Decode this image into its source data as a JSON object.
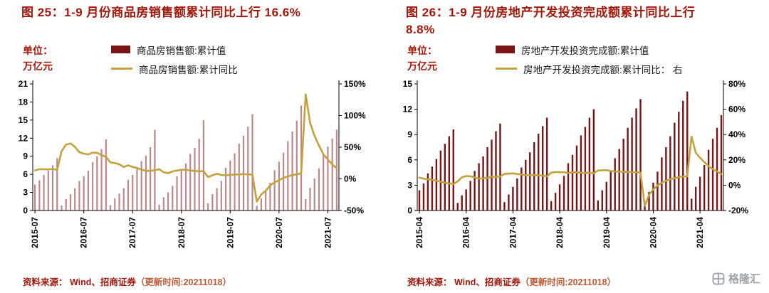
{
  "colors": {
    "title_red": "#a2180b",
    "bar_maroon": "#7a1417",
    "line_gold": "#c2a23c",
    "negative_label": "#ff0000",
    "axis_black": "#000000",
    "source_red": "#a2180b",
    "source_note_red": "#c05a33",
    "logo_grey": "#9ea3a8"
  },
  "left_panel": {
    "title": "图 25：1-9 月份商品房销售额累计同比上行 16.6%",
    "unit_line1": "单位：",
    "unit_line2": "万亿元",
    "legend": [
      {
        "label": "商品房销售额:累计值",
        "type": "bar"
      },
      {
        "label": "商品房销售额:累计同比",
        "type": "line"
      }
    ],
    "source_main": "资料来源： Wind、招商证券",
    "source_note": "（更新时间:20211018）"
  },
  "right_panel": {
    "title": "图 26：1-9 月份房地产开发投资完成额累计同比上行 8.8%",
    "unit_line1": "单位：",
    "unit_line2": "万亿元",
    "legend": [
      {
        "label": "房地产开发投资完成额:累计值",
        "type": "bar"
      },
      {
        "label": "房地产开发投资完成额:累计同比： 右",
        "type": "line"
      }
    ],
    "source_main": "资料来源： Wind、招商证券",
    "source_note": "（更新时间:20211018）"
  },
  "logo": {
    "text": "格隆汇"
  },
  "chart_data": [
    {
      "type": "bar",
      "title": "1-9月份商品房销售额累计同比上行16.6%",
      "xlabel": "",
      "ylabel": "万亿元",
      "legend_position": "top",
      "grid": false,
      "categories": [
        "2015-07",
        "2015-08",
        "2015-09",
        "2015-10",
        "2015-11",
        "2015-12",
        "2016-02",
        "2016-03",
        "2016-04",
        "2016-05",
        "2016-06",
        "2016-07",
        "2016-08",
        "2016-09",
        "2016-10",
        "2016-11",
        "2016-12",
        "2017-02",
        "2017-03",
        "2017-04",
        "2017-05",
        "2017-06",
        "2017-07",
        "2017-08",
        "2017-09",
        "2017-10",
        "2017-11",
        "2017-12",
        "2018-02",
        "2018-03",
        "2018-04",
        "2018-05",
        "2018-06",
        "2018-07",
        "2018-08",
        "2018-09",
        "2018-10",
        "2018-11",
        "2018-12",
        "2019-02",
        "2019-03",
        "2019-04",
        "2019-05",
        "2019-06",
        "2019-07",
        "2019-08",
        "2019-09",
        "2019-10",
        "2019-11",
        "2019-12",
        "2020-02",
        "2020-03",
        "2020-04",
        "2020-05",
        "2020-06",
        "2020-07",
        "2020-08",
        "2020-09",
        "2020-10",
        "2020-11",
        "2020-12",
        "2021-02",
        "2021-03",
        "2021-04",
        "2021-05",
        "2021-06",
        "2021-07",
        "2021-08",
        "2021-09"
      ],
      "series": [
        {
          "name": "商品房销售额:累计值",
          "kind": "bar",
          "axis": "left",
          "values": [
            4.3,
            5.0,
            5.9,
            6.6,
            7.5,
            8.7,
            0.8,
            1.9,
            2.7,
            3.7,
            4.9,
            5.7,
            6.6,
            8.0,
            9.0,
            10.2,
            11.8,
            0.9,
            2.0,
            2.8,
            3.7,
            5.1,
            5.9,
            6.9,
            8.2,
            9.1,
            10.5,
            13.4,
            1.0,
            2.2,
            3.0,
            4.1,
            5.7,
            6.6,
            7.8,
            9.4,
            10.4,
            11.9,
            15.0,
            1.2,
            2.7,
            3.7,
            4.9,
            7.1,
            8.3,
            9.5,
            11.1,
            12.4,
            13.9,
            16.0,
            0.8,
            2.0,
            3.2,
            4.6,
            6.7,
            8.1,
            9.6,
            11.5,
            13.1,
            14.9,
            17.4,
            1.9,
            3.8,
            5.3,
            7.0,
            9.3,
            10.6,
            11.9,
            13.4
          ]
        },
        {
          "name": "商品房销售额:累计同比",
          "kind": "line",
          "axis": "right",
          "values": [
            13.4,
            15.3,
            15.3,
            14.9,
            15.6,
            14.4,
            43.6,
            54.1,
            55.9,
            50.7,
            42.1,
            39.8,
            38.7,
            41.3,
            41.2,
            37.5,
            34.8,
            26.0,
            25.1,
            23.0,
            18.6,
            21.5,
            18.9,
            17.2,
            14.6,
            12.6,
            12.7,
            13.7,
            15.3,
            10.4,
            9.0,
            11.8,
            13.2,
            14.4,
            14.5,
            13.3,
            12.5,
            12.1,
            12.2,
            2.8,
            5.6,
            8.1,
            6.1,
            5.6,
            6.2,
            6.7,
            7.1,
            7.3,
            7.3,
            6.5,
            -35.9,
            -24.7,
            -18.6,
            -10.6,
            -5.4,
            -2.1,
            1.6,
            3.8,
            5.8,
            7.2,
            8.7,
            133.4,
            88.5,
            68.2,
            52.4,
            38.9,
            30.7,
            22.8,
            16.6
          ]
        }
      ],
      "left_axis": {
        "min": 0,
        "max": 21,
        "ticks": [
          0,
          3,
          6,
          9,
          12,
          15,
          18,
          21
        ],
        "unit": "万亿元"
      },
      "right_axis": {
        "min": -50,
        "max": 150,
        "ticks": [
          -50,
          0,
          50,
          100,
          150
        ],
        "format": "percent"
      },
      "x_ticks": [
        {
          "index": 0,
          "label": "2015-07"
        },
        {
          "index": 11,
          "label": "2016-07"
        },
        {
          "index": 22,
          "label": "2017-07"
        },
        {
          "index": 33,
          "label": "2018-07"
        },
        {
          "index": 44,
          "label": "2019-07"
        },
        {
          "index": 55,
          "label": "2020-07"
        },
        {
          "index": 66,
          "label": "2021-07"
        }
      ]
    },
    {
      "type": "bar",
      "title": "1-9月份房地产开发投资完成额累计同比上行8.8%",
      "xlabel": "",
      "ylabel": "万亿元",
      "legend_position": "top",
      "grid": false,
      "categories": [
        "2015-04",
        "2015-05",
        "2015-06",
        "2015-07",
        "2015-08",
        "2015-09",
        "2015-10",
        "2015-11",
        "2015-12",
        "2016-02",
        "2016-03",
        "2016-04",
        "2016-05",
        "2016-06",
        "2016-07",
        "2016-08",
        "2016-09",
        "2016-10",
        "2016-11",
        "2016-12",
        "2017-02",
        "2017-03",
        "2017-04",
        "2017-05",
        "2017-06",
        "2017-07",
        "2017-08",
        "2017-09",
        "2017-10",
        "2017-11",
        "2017-12",
        "2018-02",
        "2018-03",
        "2018-04",
        "2018-05",
        "2018-06",
        "2018-07",
        "2018-08",
        "2018-09",
        "2018-10",
        "2018-11",
        "2018-12",
        "2019-02",
        "2019-03",
        "2019-04",
        "2019-05",
        "2019-06",
        "2019-07",
        "2019-08",
        "2019-09",
        "2019-10",
        "2019-11",
        "2019-12",
        "2020-02",
        "2020-03",
        "2020-04",
        "2020-05",
        "2020-06",
        "2020-07",
        "2020-08",
        "2020-09",
        "2020-10",
        "2020-11",
        "2020-12",
        "2021-02",
        "2021-03",
        "2021-04",
        "2021-05",
        "2021-06",
        "2021-07",
        "2021-08",
        "2021-09"
      ],
      "series": [
        {
          "name": "房地产开发投资完成额:累计值",
          "kind": "bar",
          "axis": "left",
          "values": [
            2.4,
            3.2,
            4.4,
            5.2,
            6.1,
            7.1,
            7.9,
            8.8,
            9.6,
            0.9,
            1.8,
            2.5,
            3.5,
            4.7,
            5.6,
            6.4,
            7.5,
            8.4,
            9.4,
            10.3,
            1.0,
            1.9,
            2.8,
            3.8,
            5.1,
            6.0,
            6.9,
            8.1,
            9.1,
            10.0,
            11.0,
            1.1,
            2.1,
            3.1,
            4.1,
            5.6,
            6.6,
            7.7,
            8.9,
            9.9,
            11.0,
            12.0,
            1.2,
            2.4,
            3.4,
            4.6,
            6.2,
            7.3,
            8.5,
            9.8,
            11.0,
            12.1,
            13.2,
            1.0,
            2.2,
            3.3,
            4.6,
            6.3,
            7.5,
            8.8,
            10.4,
            11.7,
            13.0,
            14.1,
            1.4,
            2.8,
            4.0,
            5.4,
            7.2,
            8.5,
            9.8,
            11.3
          ]
        },
        {
          "name": "房地产开发投资完成额:累计同比",
          "kind": "line",
          "axis": "right",
          "values": [
            6.0,
            5.1,
            4.6,
            4.3,
            3.5,
            2.6,
            2.0,
            1.3,
            1.0,
            3.0,
            6.2,
            7.2,
            7.0,
            6.1,
            5.3,
            5.4,
            5.8,
            6.6,
            6.5,
            6.9,
            8.9,
            9.1,
            9.3,
            8.8,
            8.5,
            7.9,
            7.8,
            8.1,
            7.8,
            7.5,
            7.0,
            9.9,
            10.4,
            10.3,
            10.2,
            9.7,
            10.2,
            10.1,
            9.9,
            9.7,
            9.7,
            9.5,
            11.6,
            11.8,
            11.9,
            11.2,
            10.9,
            10.6,
            10.5,
            10.5,
            10.3,
            10.2,
            9.9,
            -16.3,
            -7.7,
            -3.3,
            -0.3,
            1.9,
            3.4,
            4.6,
            5.6,
            6.3,
            6.8,
            7.0,
            38.3,
            25.6,
            21.6,
            18.3,
            15.0,
            12.7,
            10.9,
            8.8
          ]
        }
      ],
      "left_axis": {
        "min": 0,
        "max": 15,
        "ticks": [
          0,
          3,
          6,
          9,
          12,
          15
        ],
        "unit": "万亿元"
      },
      "right_axis": {
        "min": -20,
        "max": 80,
        "ticks": [
          -20,
          0,
          20,
          40,
          60,
          80
        ],
        "format": "percent"
      },
      "x_ticks": [
        {
          "index": 0,
          "label": "2015-04"
        },
        {
          "index": 11,
          "label": "2016-04"
        },
        {
          "index": 22,
          "label": "2017-04"
        },
        {
          "index": 33,
          "label": "2018-04"
        },
        {
          "index": 44,
          "label": "2019-04"
        },
        {
          "index": 55,
          "label": "2020-04"
        },
        {
          "index": 66,
          "label": "2021-04"
        }
      ]
    }
  ]
}
